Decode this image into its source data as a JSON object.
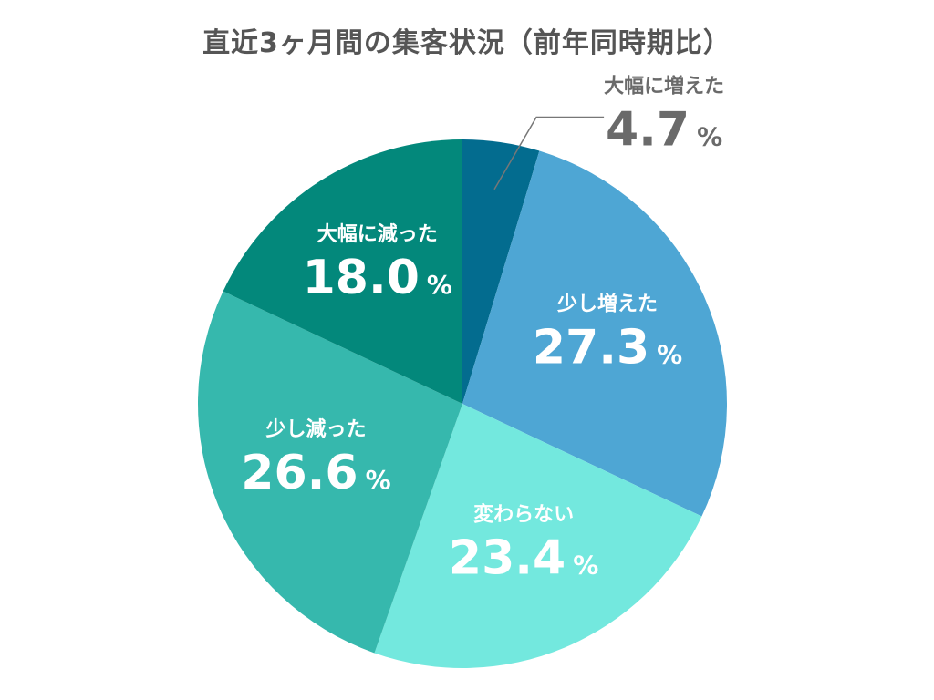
{
  "chart_data": {
    "type": "pie",
    "title": "直近3ヶ月間の集客状況（前年同時期比）",
    "unit": "%",
    "start_angle_deg": 0,
    "direction": "clockwise",
    "slices": [
      {
        "label": "大幅に増えた",
        "value": 4.7,
        "color": "#036c8f",
        "text_color": "#6a6a6a",
        "outside": true
      },
      {
        "label": "少し増えた",
        "value": 27.3,
        "color": "#4ea6d4",
        "text_color": "#ffffff",
        "outside": false
      },
      {
        "label": "変わらない",
        "value": 23.4,
        "color": "#73e8de",
        "text_color": "#ffffff",
        "outside": false
      },
      {
        "label": "少し減った",
        "value": 26.6,
        "color": "#36b8ad",
        "text_color": "#ffffff",
        "outside": false
      },
      {
        "label": "大幅に減った",
        "value": 18.0,
        "color": "#03887b",
        "text_color": "#ffffff",
        "outside": false
      }
    ]
  }
}
